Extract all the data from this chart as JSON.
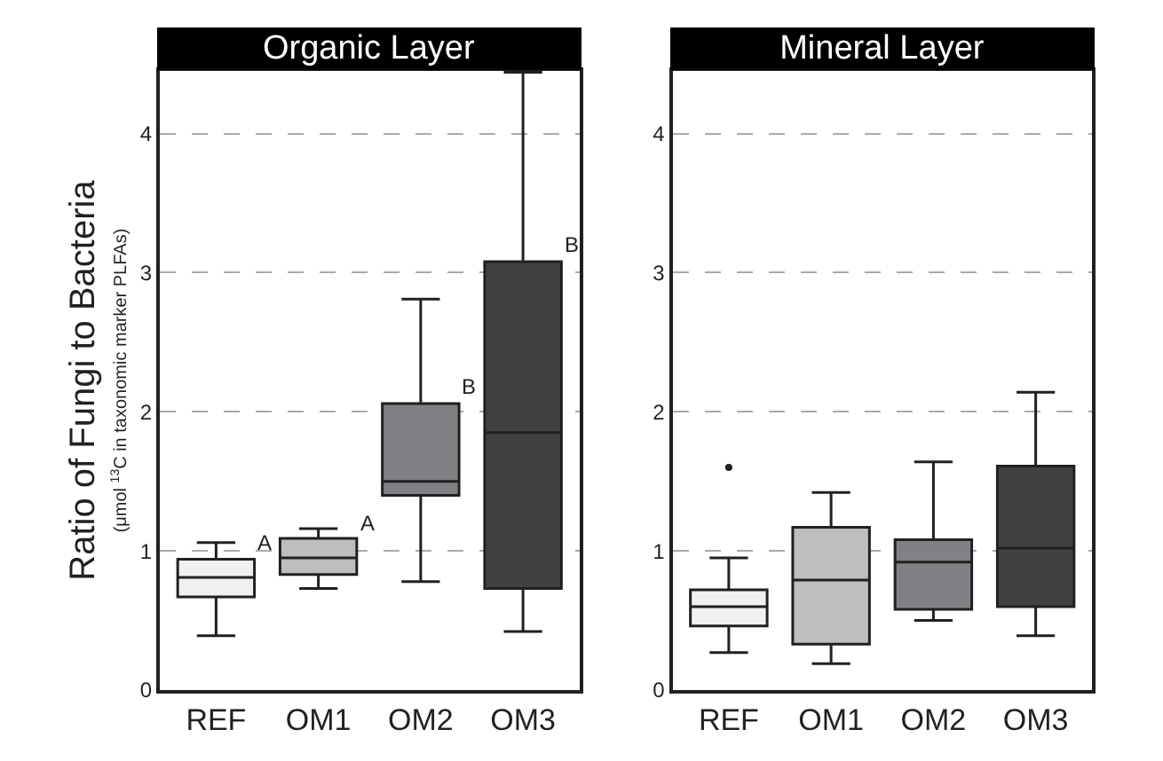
{
  "chart_data": [
    {
      "type": "box",
      "title": "Organic Layer",
      "ylabel": "Ratio of Fungi to Bacteria\n(μmol $^{13}$C in taxonomic marker PLFAs)",
      "categories": [
        "REF",
        "OM1",
        "OM2",
        "OM3"
      ],
      "colors": [
        "#f0f0f0",
        "#bdbec0",
        "#808184",
        "#414042"
      ],
      "boxes": [
        {
          "low": 0.39,
          "q1": 0.67,
          "median": 0.81,
          "q3": 0.94,
          "high": 1.06
        },
        {
          "low": 0.73,
          "q1": 0.83,
          "median": 0.95,
          "q3": 1.09,
          "high": 1.16
        },
        {
          "low": 0.78,
          "q1": 1.4,
          "median": 1.5,
          "q3": 2.06,
          "high": 2.81
        },
        {
          "low": 0.42,
          "q1": 0.73,
          "median": 1.85,
          "q3": 3.08,
          "high": 4.44
        }
      ],
      "annotations": [
        {
          "text": "A",
          "x": "REF",
          "y": 0.94
        },
        {
          "text": "A",
          "x": "OM1",
          "y": 1.09
        },
        {
          "text": "B",
          "x": "OM2",
          "y": 2.06
        },
        {
          "text": "B",
          "x": "OM3",
          "y": 3.08
        }
      ],
      "ylim": [
        0,
        4.45
      ],
      "yticks": [
        0,
        1,
        2,
        3,
        4
      ],
      "grid": "y"
    },
    {
      "type": "box",
      "title": "Mineral Layer",
      "categories": [
        "REF",
        "OM1",
        "OM2",
        "OM3"
      ],
      "colors": [
        "#f0f0f0",
        "#bdbec0",
        "#808184",
        "#414042"
      ],
      "boxes": [
        {
          "low": 0.27,
          "q1": 0.46,
          "median": 0.6,
          "q3": 0.72,
          "high": 0.95,
          "outliers": [
            1.6
          ]
        },
        {
          "low": 0.19,
          "q1": 0.33,
          "median": 0.79,
          "q3": 1.17,
          "high": 1.42
        },
        {
          "low": 0.5,
          "q1": 0.58,
          "median": 0.92,
          "q3": 1.08,
          "high": 1.64
        },
        {
          "low": 0.39,
          "q1": 0.6,
          "median": 1.02,
          "q3": 1.61,
          "high": 2.14
        }
      ],
      "ylim": [
        0,
        4.45
      ],
      "yticks": [
        0,
        1,
        2,
        3,
        4
      ],
      "grid": "y"
    }
  ]
}
